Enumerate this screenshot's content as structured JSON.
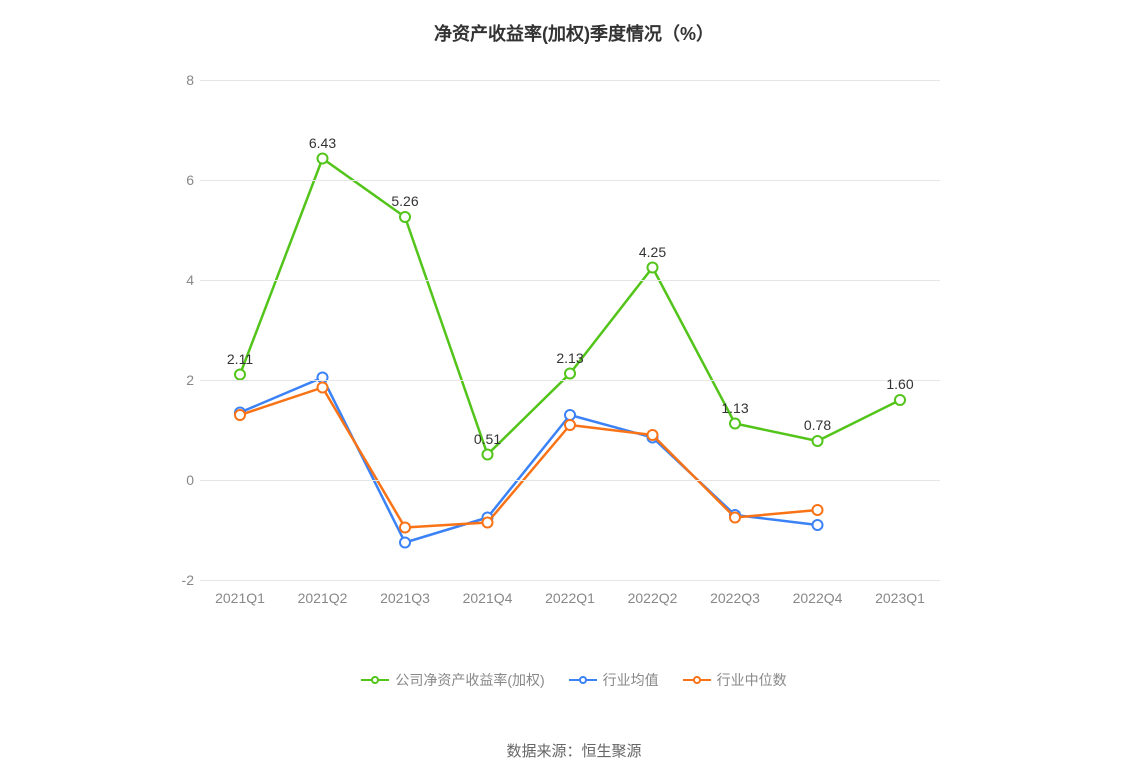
{
  "chart": {
    "type": "line",
    "title": "净资产收益率(加权)季度情况（%）",
    "title_fontsize": 18,
    "title_color": "#333333",
    "background_color": "#ffffff",
    "grid_color": "#e6e6e6",
    "axis_line_color": "#888888",
    "x_categories": [
      "2021Q1",
      "2021Q2",
      "2021Q3",
      "2021Q4",
      "2022Q1",
      "2022Q2",
      "2022Q3",
      "2022Q4",
      "2023Q1"
    ],
    "y": {
      "min": -2,
      "max": 8,
      "tick_step": 2,
      "ticks": [
        -2,
        0,
        2,
        4,
        6,
        8
      ],
      "label_color": "#888888",
      "label_fontsize": 14
    },
    "x": {
      "label_color": "#888888",
      "label_fontsize": 14
    },
    "marker_radius": 5,
    "marker_fill": "#ffffff",
    "line_width": 2.5,
    "series": [
      {
        "name": "公司净资产收益率(加权)",
        "color": "#52c41a",
        "values": [
          2.11,
          6.43,
          5.26,
          0.51,
          2.13,
          4.25,
          1.13,
          0.78,
          1.6
        ],
        "show_labels": true,
        "label_color": "#333333"
      },
      {
        "name": "行业均值",
        "color": "#3b82f6",
        "values": [
          1.35,
          2.05,
          -1.25,
          -0.75,
          1.3,
          0.85,
          -0.7,
          -0.9,
          null
        ],
        "show_labels": false
      },
      {
        "name": "行业中位数",
        "color": "#f97316",
        "values": [
          1.3,
          1.85,
          -0.95,
          -0.85,
          1.1,
          0.9,
          -0.75,
          -0.6,
          null
        ],
        "show_labels": false
      }
    ],
    "legend": {
      "position": "bottom",
      "fontsize": 14,
      "color": "#888888"
    },
    "source_label": "数据来源：恒生聚源",
    "source_color": "#666666",
    "source_fontsize": 15
  }
}
